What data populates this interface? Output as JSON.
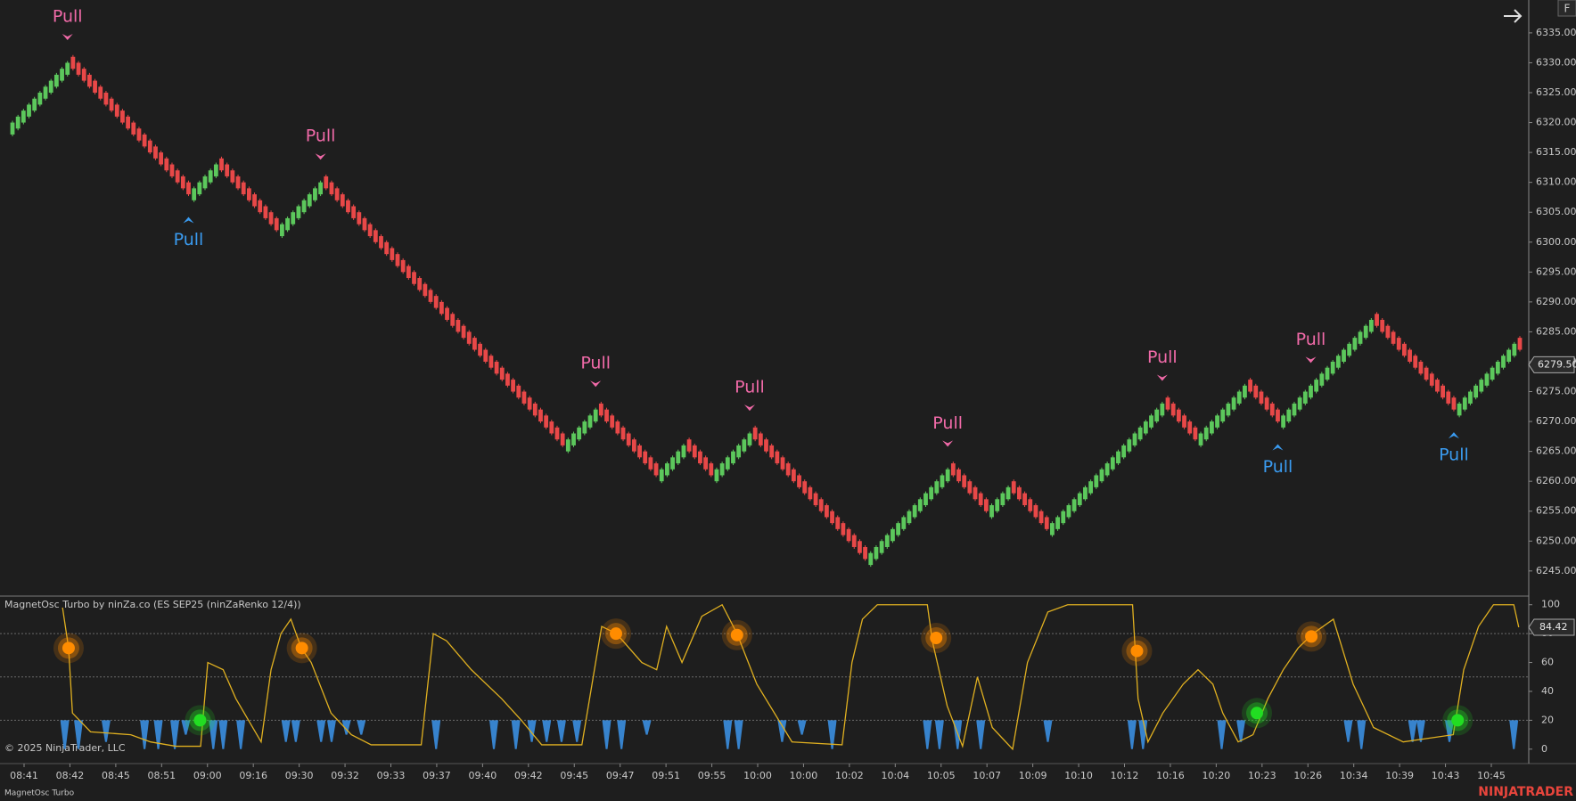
{
  "chart_data": [
    {
      "type": "candlestick",
      "brick_size": 2,
      "up_color": "#5cc85c",
      "down_color": "#e84848",
      "close": [
        6320,
        6321,
        6322,
        6323,
        6324,
        6325,
        6326,
        6327,
        6328,
        6329,
        6330,
        6329,
        6328,
        6327,
        6326,
        6325,
        6324,
        6323,
        6322,
        6321,
        6320,
        6319,
        6318,
        6317,
        6316,
        6315,
        6314,
        6313,
        6312,
        6311,
        6310,
        6309,
        6308,
        6309,
        6310,
        6311,
        6312,
        6313,
        6312,
        6311,
        6310,
        6309,
        6308,
        6307,
        6306,
        6305,
        6304,
        6303,
        6302,
        6303,
        6304,
        6305,
        6306,
        6307,
        6308,
        6309,
        6310,
        6309,
        6308,
        6307,
        6306,
        6305,
        6304,
        6303,
        6302,
        6301,
        6300,
        6299,
        6298,
        6297,
        6296,
        6295,
        6294,
        6293,
        6292,
        6291,
        6290,
        6289,
        6288,
        6287,
        6286,
        6285,
        6284,
        6283,
        6282,
        6281,
        6280,
        6279,
        6278,
        6277,
        6276,
        6275,
        6274,
        6273,
        6272,
        6271,
        6270,
        6269,
        6268,
        6267,
        6266,
        6267,
        6268,
        6269,
        6270,
        6271,
        6272,
        6271,
        6270,
        6269,
        6268,
        6267,
        6266,
        6265,
        6264,
        6263,
        6262,
        6261,
        6262,
        6263,
        6264,
        6265,
        6266,
        6265,
        6264,
        6263,
        6262,
        6261,
        6262,
        6263,
        6264,
        6265,
        6266,
        6267,
        6268,
        6267,
        6266,
        6265,
        6264,
        6263,
        6262,
        6261,
        6260,
        6259,
        6258,
        6257,
        6256,
        6255,
        6254,
        6253,
        6252,
        6251,
        6250,
        6249,
        6248,
        6247,
        6248,
        6249,
        6250,
        6251,
        6252,
        6253,
        6254,
        6255,
        6256,
        6257,
        6258,
        6259,
        6260,
        6261,
        6262,
        6261,
        6260,
        6259,
        6258,
        6257,
        6256,
        6255,
        6256,
        6257,
        6258,
        6259,
        6258,
        6257,
        6256,
        6255,
        6254,
        6253,
        6252,
        6253,
        6254,
        6255,
        6256,
        6257,
        6258,
        6259,
        6260,
        6261,
        6262,
        6263,
        6264,
        6265,
        6266,
        6267,
        6268,
        6269,
        6270,
        6271,
        6272,
        6273,
        6272,
        6271,
        6270,
        6269,
        6268,
        6267,
        6268,
        6269,
        6270,
        6271,
        6272,
        6273,
        6274,
        6275,
        6276,
        6275,
        6274,
        6273,
        6272,
        6271,
        6270,
        6271,
        6272,
        6273,
        6274,
        6275,
        6276,
        6277,
        6278,
        6279,
        6280,
        6281,
        6282,
        6283,
        6284,
        6285,
        6286,
        6287,
        6286,
        6285,
        6284,
        6283,
        6282,
        6281,
        6280,
        6279,
        6278,
        6277,
        6276,
        6275,
        6274,
        6273,
        6272,
        6273,
        6274,
        6275,
        6276,
        6277,
        6278,
        6279,
        6280,
        6281,
        6282,
        6283,
        6282
      ],
      "ylim": [
        6240.8,
        6340.5
      ],
      "yticks": [
        {
          "value": 6245,
          "label": "6245.00"
        },
        {
          "value": 6250,
          "label": "6250.00"
        },
        {
          "value": 6255,
          "label": "6255.00"
        },
        {
          "value": 6260,
          "label": "6260.00"
        },
        {
          "value": 6265,
          "label": "6265.00"
        },
        {
          "value": 6270,
          "label": "6270.00"
        },
        {
          "value": 6275,
          "label": "6275.00"
        },
        {
          "value": 6280,
          "label": "6280.00"
        },
        {
          "value": 6285,
          "label": "6285.00"
        },
        {
          "value": 6290,
          "label": "6290.00"
        },
        {
          "value": 6295,
          "label": "6295.00"
        },
        {
          "value": 6300,
          "label": "6300.00"
        },
        {
          "value": 6305,
          "label": "6305.00"
        },
        {
          "value": 6310,
          "label": "6310.00"
        },
        {
          "value": 6315,
          "label": "6315.00"
        },
        {
          "value": 6320,
          "label": "6320.00"
        },
        {
          "value": 6325,
          "label": "6325.00"
        },
        {
          "value": 6330,
          "label": "6330.00"
        },
        {
          "value": 6335,
          "label": "6335.00"
        }
      ],
      "last_price": {
        "value": 6279.5,
        "label": "6279.50"
      },
      "signals": [
        {
          "at": 10,
          "label": "Pull",
          "direction": "down",
          "color": "#f06aa8"
        },
        {
          "at": 32,
          "label": "Pull",
          "direction": "up",
          "color": "#3a9bf0"
        },
        {
          "at": 56,
          "label": "Pull",
          "direction": "down",
          "color": "#f06aa8"
        },
        {
          "at": 106,
          "label": "Pull",
          "direction": "down",
          "color": "#f06aa8"
        },
        {
          "at": 134,
          "label": "Pull",
          "direction": "down",
          "color": "#f06aa8"
        },
        {
          "at": 170,
          "label": "Pull",
          "direction": "down",
          "color": "#f06aa8"
        },
        {
          "at": 209,
          "label": "Pull",
          "direction": "down",
          "color": "#f06aa8"
        },
        {
          "at": 230,
          "label": "Pull",
          "direction": "up",
          "color": "#3a9bf0"
        },
        {
          "at": 236,
          "label": "Pull",
          "direction": "down",
          "color": "#f06aa8"
        },
        {
          "at": 262,
          "label": "Pull",
          "direction": "up",
          "color": "#3a9bf0"
        }
      ]
    },
    {
      "type": "line",
      "title": "MagnetOsc Turbo by ninZa.co (ES SEP25 (ninZaRenko 12/4))",
      "color": "#e0b020",
      "x": [
        9.1,
        10.2,
        10.9,
        14.2,
        21.5,
        25.1,
        29.7,
        34.2,
        35.5,
        38.3,
        40.6,
        45.2,
        47,
        48.8,
        50.6,
        52.5,
        54.3,
        57.9,
        61.6,
        65.2,
        74.3,
        76.5,
        78.9,
        83.4,
        88.9,
        92.5,
        96.2,
        103.5,
        107.1,
        109.8,
        114.4,
        117.1,
        118.9,
        121.7,
        125.3,
        129,
        131.7,
        135.3,
        141.7,
        150.8,
        152.6,
        154.5,
        157.2,
        166.3,
        167.2,
        169.9,
        172.7,
        175.4,
        178.1,
        181.8,
        184.5,
        188.2,
        191.8,
        203.6,
        204.6,
        206.4,
        209.1,
        212.8,
        215.5,
        218.2,
        220,
        222.8,
        225.5,
        228.2,
        231,
        233.7,
        236.4,
        240.1,
        243.7,
        247.4,
        252.8,
        261.9,
        263.8,
        266.5,
        269.2,
        272.9,
        273.8
      ],
      "values": [
        98,
        70,
        25,
        12,
        10,
        5,
        2,
        2,
        60,
        55,
        35,
        5,
        55,
        80,
        90,
        70,
        60,
        25,
        10,
        3,
        3,
        80,
        75,
        55,
        35,
        20,
        3,
        3,
        85,
        80,
        60,
        55,
        85,
        60,
        92,
        100,
        80,
        45,
        5,
        3,
        60,
        90,
        100,
        100,
        75,
        30,
        2,
        50,
        15,
        0,
        60,
        95,
        100,
        100,
        35,
        5,
        25,
        45,
        55,
        45,
        25,
        5,
        10,
        35,
        55,
        70,
        80,
        90,
        45,
        15,
        5,
        10,
        55,
        85,
        100,
        100,
        84.42
      ],
      "current_value": 84.42,
      "xlim": [
        0,
        274
      ],
      "ylim": [
        -10,
        106
      ],
      "yticks": [
        0,
        20,
        40,
        60,
        80,
        100
      ],
      "levels": [
        20,
        50,
        80
      ],
      "histogram": {
        "color": "#3a8ee0",
        "base": 20,
        "x": [
          9.5,
          12,
          17,
          24,
          26.5,
          29.5,
          31.5,
          36.5,
          38.3,
          41.5,
          49.7,
          51.5,
          56.1,
          58,
          60.7,
          63.4,
          77,
          87.5,
          91.5,
          94.4,
          97.1,
          99.8,
          102.6,
          108,
          110.7,
          115.3,
          130,
          132,
          139.9,
          143.5,
          149,
          166.3,
          168.5,
          171.8,
          176,
          188.2,
          203.5,
          205.5,
          219.8,
          223.3,
          242.8,
          245.2,
          254.5,
          256,
          261.2,
          272.9
        ],
        "values": [
          0,
          0,
          5,
          0,
          0,
          0,
          10,
          0,
          0,
          0,
          5,
          5,
          5,
          5,
          10,
          10,
          0,
          0,
          0,
          5,
          5,
          5,
          5,
          0,
          0,
          10,
          0,
          0,
          5,
          10,
          0,
          0,
          0,
          0,
          0,
          5,
          0,
          0,
          0,
          5,
          5,
          0,
          5,
          5,
          5,
          0
        ]
      },
      "dots": [
        {
          "color": "#ff8c00",
          "x": [
            10.2,
            52.6,
            109.7,
            131.7,
            167.9,
            204.4,
            236.1
          ],
          "values": [
            70,
            70,
            80,
            79,
            77,
            68,
            78
          ]
        },
        {
          "color": "#22dd22",
          "x": [
            34.1,
            226.2,
            262.7
          ],
          "values": [
            20,
            25,
            20
          ]
        }
      ]
    }
  ],
  "time_axis": {
    "labels": [
      "08:41",
      "08:42",
      "08:45",
      "08:51",
      "09:00",
      "09:16",
      "09:30",
      "09:32",
      "09:33",
      "09:37",
      "09:40",
      "09:42",
      "09:45",
      "09:47",
      "09:51",
      "09:55",
      "10:00",
      "10:00",
      "10:02",
      "10:04",
      "10:05",
      "10:07",
      "10:09",
      "10:10",
      "10:12",
      "10:16",
      "10:20",
      "10:23",
      "10:26",
      "10:34",
      "10:39",
      "10:43",
      "10:45"
    ]
  },
  "footer": {
    "copyright": "© 2025 NinjaTrader, LLC",
    "panel_name": "MagnetOsc Turbo",
    "brand": "NINJATRADER"
  },
  "toolbar": {
    "button": "F"
  }
}
